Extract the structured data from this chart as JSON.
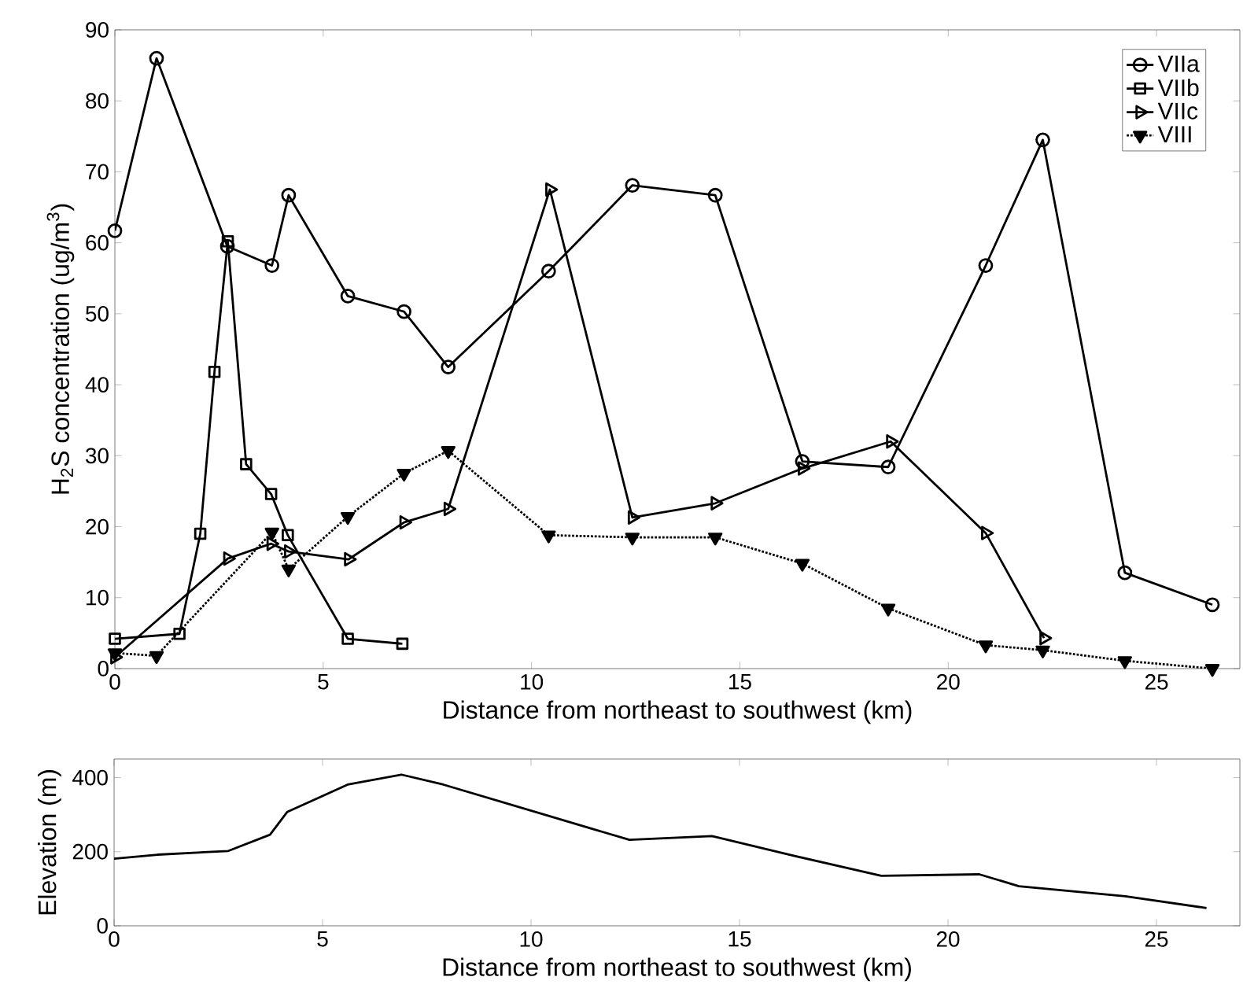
{
  "chart_data": [
    {
      "type": "line",
      "ylabel": "H$_{2}$S concentration (ug/m$^{3}$)",
      "xlabel": "Distance from northeast to southwest (km)",
      "xlim": [
        0,
        27
      ],
      "ylim": [
        0,
        90
      ],
      "xticks": [
        0,
        5,
        10,
        15,
        20,
        25
      ],
      "yticks": [
        0,
        10,
        20,
        30,
        40,
        50,
        60,
        70,
        80,
        90
      ],
      "legend": "top right",
      "grid": false,
      "series": [
        {
          "name": "VIIa",
          "color": "#000000",
          "marker": "circle",
          "line_style": "solid",
          "x": [
            0,
            1.0,
            2.7,
            3.77,
            4.17,
            5.59,
            6.94,
            8.0,
            10.41,
            12.42,
            14.41,
            16.5,
            18.56,
            20.9,
            22.27,
            24.24,
            26.34
          ],
          "values": [
            61.7,
            86,
            59.5,
            56.8,
            66.7,
            52.5,
            50.3,
            42.5,
            56.0,
            68.1,
            66.7,
            29.2,
            28.4,
            56.8,
            74.5,
            13.5,
            9.0
          ]
        },
        {
          "name": "VIIb",
          "color": "#000000",
          "marker": "square",
          "line_style": "solid",
          "x": [
            0,
            1.55,
            2.05,
            2.39,
            2.71,
            3.15,
            3.75,
            4.15,
            5.59,
            6.9
          ],
          "values": [
            4.2,
            4.9,
            19.0,
            41.8,
            60.2,
            28.8,
            24.6,
            18.8,
            4.2,
            3.5
          ]
        },
        {
          "name": "VIIc",
          "color": "#000000",
          "marker": "triangle",
          "line_style": "solid",
          "x": [
            0,
            2.71,
            3.75,
            4.17,
            5.61,
            6.94,
            8.0,
            10.44,
            12.42,
            14.41,
            16.5,
            18.62,
            20.9,
            22.3
          ],
          "values": [
            1.6,
            15.5,
            17.6,
            16.5,
            15.4,
            20.6,
            22.5,
            67.5,
            21.3,
            23.3,
            28.2,
            32.0,
            19.1,
            4.3
          ]
        },
        {
          "name": "VIII",
          "color": "#000000",
          "marker": "triangle",
          "line_style": "dotted",
          "x": [
            0,
            1.0,
            3.77,
            4.17,
            5.59,
            6.94,
            8.0,
            10.41,
            12.42,
            14.41,
            16.5,
            18.56,
            20.9,
            22.27,
            24.24,
            26.34
          ],
          "values": [
            2.2,
            1.8,
            19.2,
            14.0,
            21.4,
            27.5,
            30.7,
            18.8,
            18.5,
            18.5,
            14.8,
            8.5,
            3.3,
            2.6,
            1.1,
            0
          ]
        }
      ]
    },
    {
      "type": "line",
      "ylabel": "Elevation (m)",
      "xlabel": "Distance from northeast to southwest (km)",
      "xlim": [
        0,
        27
      ],
      "ylim": [
        0,
        450
      ],
      "xticks": [
        0,
        5,
        10,
        15,
        20,
        25
      ],
      "yticks": [
        0,
        200,
        400
      ],
      "legend": false,
      "grid": false,
      "marker": "none",
      "series": [
        {
          "color": "#000000",
          "line_style": "solid",
          "x": [
            0,
            1.04,
            2.74,
            3.74,
            4.15,
            5.6,
            6.89,
            7.9,
            12.36,
            14.34,
            16.3,
            18.4,
            20.75,
            21.7,
            24.25,
            26.2
          ],
          "values": [
            181,
            192,
            202,
            246,
            307,
            381,
            408,
            381,
            232,
            242,
            189,
            135,
            139,
            107,
            80,
            48
          ]
        }
      ]
    }
  ]
}
